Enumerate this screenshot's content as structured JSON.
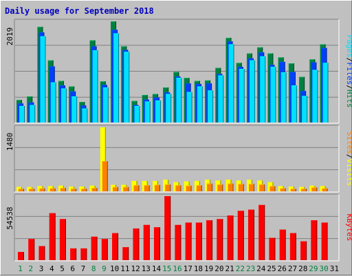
{
  "chart_data": {
    "title": "Daily usage for September 2018",
    "type": "bar",
    "categories": [
      "1",
      "2",
      "3",
      "4",
      "5",
      "6",
      "7",
      "8",
      "9",
      "10",
      "11",
      "12",
      "13",
      "14",
      "15",
      "16",
      "17",
      "18",
      "19",
      "20",
      "21",
      "22",
      "23",
      "24",
      "25",
      "26",
      "27",
      "28",
      "29",
      "30",
      "31"
    ],
    "weekend_days": [
      "1",
      "2",
      "8",
      "9",
      "15",
      "16",
      "22",
      "23",
      "29",
      "30"
    ],
    "colors": {
      "hits": "#008040",
      "files": "#0040ff",
      "pages": "#00e0ff",
      "visits": "#ffff00",
      "sites": "#ff8000",
      "kbytes": "#ff0000",
      "title": "#0000c0",
      "weekday_label": "#000000",
      "weekend_label": "#008040",
      "background": "#c0c0c0"
    },
    "panels": [
      {
        "id": "hits",
        "ylabel_max": "2019",
        "ymax": 2019,
        "legend": [
          {
            "text": "Pages",
            "color": "#00e0ff"
          },
          {
            "text": "/",
            "color": "#000000"
          },
          {
            "text": "Files",
            "color": "#0040ff"
          },
          {
            "text": "/",
            "color": "#000000"
          },
          {
            "text": "Hits",
            "color": "#008040"
          }
        ],
        "series": [
          {
            "name": "Hits",
            "values": [
              450,
              520,
              1910,
              1240,
              830,
              720,
              410,
              1640,
              820,
              2019,
              1520,
              430,
              550,
              570,
              700,
              1010,
              890,
              830,
              840,
              1090,
              1690,
              1190,
              1380,
              1500,
              1380,
              1300,
              1180,
              910,
              1260,
              1560
            ]
          },
          {
            "name": "Files",
            "values": [
              380,
              400,
              1800,
              1120,
              740,
              620,
              340,
              1520,
              750,
              1850,
              1450,
              350,
              460,
              500,
              600,
              920,
              780,
              770,
              780,
              970,
              1620,
              1110,
              1280,
              1400,
              1150,
              1210,
              1010,
              630,
              1200,
              1490
            ]
          },
          {
            "name": "Pages",
            "values": [
              330,
              350,
              1720,
              800,
              680,
              520,
              280,
              1440,
              700,
              1780,
              1410,
              330,
              420,
              440,
              570,
              890,
              610,
              720,
              640,
              940,
              1560,
              1070,
              1240,
              1320,
              1110,
              1000,
              740,
              530,
              1050,
              1190
            ]
          }
        ]
      },
      {
        "id": "visits",
        "ylabel_max": "1480",
        "ymax": 1480,
        "legend": [
          {
            "text": "Sites",
            "color": "#ff8000"
          },
          {
            "text": "/",
            "color": "#000000"
          },
          {
            "text": "Visits",
            "color": "#ffff00"
          }
        ],
        "series": [
          {
            "name": "Visits",
            "values": [
              100,
              100,
              120,
              120,
              130,
              110,
              110,
              130,
              1480,
              150,
              150,
              240,
              240,
              240,
              270,
              210,
              230,
              240,
              270,
              250,
              270,
              250,
              270,
              250,
              210,
              120,
              110,
              100,
              130,
              120
            ]
          },
          {
            "name": "Sites",
            "values": [
              60,
              60,
              70,
              70,
              80,
              60,
              60,
              80,
              700,
              100,
              100,
              140,
              140,
              150,
              160,
              140,
              130,
              140,
              180,
              160,
              180,
              170,
              170,
              160,
              120,
              70,
              60,
              60,
              90,
              70
            ]
          }
        ]
      },
      {
        "id": "kbytes",
        "ylabel_max": "54538",
        "ymax": 54538,
        "legend": [
          {
            "text": "KBytes",
            "color": "#ff0000"
          }
        ],
        "series": [
          {
            "name": "KBytes",
            "values": [
              7000,
              18000,
              12000,
              40000,
              35000,
              10000,
              10000,
              20000,
              18000,
              23000,
              11000,
              27000,
              30000,
              28000,
              54538,
              30000,
              32000,
              32000,
              34000,
              35000,
              38000,
              42000,
              43000,
              47000,
              19000,
              26000,
              23000,
              16000,
              34000,
              32000
            ]
          }
        ]
      }
    ]
  }
}
